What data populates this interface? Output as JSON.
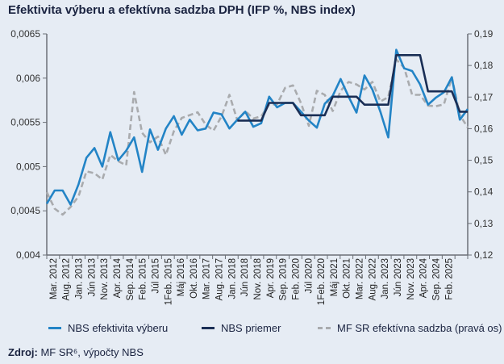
{
  "chart_data": {
    "type": "line",
    "title": "Efektivita výberu a efektívna sadzba DPH (IFP %, NBS index)",
    "x_tick_labels": [
      "Mar. 2012",
      "Aug. 2012",
      "Jan. 2013",
      "Jún 2013",
      "Nov. 2013",
      "Apr. 2014",
      "Sep. 2014",
      "Feb. 2015",
      "Júl 2015",
      "1Feb. 2015",
      "Máj 2016",
      "Okt. 2016",
      "Mar. 2017",
      "Aug. 2017",
      "Jan. 2018",
      "Jún 2018",
      "Nov. 2018",
      "Apr. 2019",
      "Sep. 2019",
      "Feb. 2020",
      "Júl 2020",
      "1Feb. 2020",
      "Máj 2021",
      "Okt. 2021",
      "Mar. 2022",
      "Aug. 2022",
      "Jan. 2023",
      "Jún 2023",
      "Nov. 2023",
      "Apr. 2024",
      "Sep. 2024",
      "Feb. 2025"
    ],
    "y_left": {
      "range": [
        0.004,
        0.0065
      ],
      "tick_labels": [
        "0,004",
        "0,0045",
        "0,005",
        "0,0055",
        "0,006",
        "0,0065"
      ],
      "ticks": [
        0.004,
        0.0045,
        0.005,
        0.0055,
        0.006,
        0.0065
      ]
    },
    "y_right": {
      "range": [
        0.12,
        0.19
      ],
      "tick_labels": [
        "0,12",
        "0,13",
        "0,14",
        "0,15",
        "0,16",
        "0,17",
        "0,18",
        "0,19"
      ],
      "ticks": [
        0.12,
        0.13,
        0.14,
        0.15,
        0.16,
        0.17,
        0.18,
        0.19
      ]
    },
    "grid": false,
    "legend_placement": "bottom",
    "series": [
      {
        "name": "NBS efektivita výberu",
        "axis": "left",
        "color": "#2384c6",
        "style": "solid",
        "values": [
          0.00458,
          0.00473,
          0.00473,
          0.00457,
          0.0048,
          0.0051,
          0.00521,
          0.005,
          0.00539,
          0.00507,
          0.00518,
          0.00533,
          0.00494,
          0.00542,
          0.00519,
          0.00543,
          0.00557,
          0.00536,
          0.00553,
          0.00541,
          0.00543,
          0.00561,
          0.00559,
          0.00543,
          0.00553,
          0.00562,
          0.00545,
          0.00549,
          0.00579,
          0.00567,
          0.00572,
          0.00572,
          0.00562,
          0.00552,
          0.00544,
          0.00571,
          0.0058,
          0.00599,
          0.00579,
          0.00561,
          0.00603,
          0.00587,
          0.00562,
          0.00533,
          0.00632,
          0.00611,
          0.00608,
          0.00593,
          0.0057,
          0.00578,
          0.00584,
          0.00601,
          0.00553,
          0.00565
        ]
      },
      {
        "name": "NBS priemer",
        "axis": "left",
        "color": "#1a2e55",
        "style": "solid",
        "values": [
          null,
          null,
          null,
          null,
          null,
          null,
          null,
          null,
          null,
          null,
          null,
          null,
          null,
          null,
          null,
          null,
          null,
          null,
          null,
          null,
          null,
          null,
          null,
          null,
          0.00552,
          0.00552,
          0.00552,
          0.00552,
          0.00572,
          0.00572,
          0.00572,
          0.00572,
          0.00558,
          0.00558,
          0.00558,
          0.00558,
          0.00579,
          0.00579,
          0.00579,
          0.00579,
          0.0057,
          0.0057,
          0.0057,
          0.0057,
          0.00626,
          0.00626,
          0.00626,
          0.00626,
          0.00585,
          0.00585,
          0.00585,
          0.00585,
          0.00562,
          0.00562
        ]
      },
      {
        "name": "MF SR efektívna sadzba (pravá os)",
        "axis": "right",
        "color": "#a9abae",
        "style": "dashed",
        "values": [
          0.1399,
          0.1347,
          0.1328,
          0.1352,
          0.1386,
          0.1465,
          0.1459,
          0.1439,
          0.1517,
          0.1497,
          0.1484,
          0.1716,
          0.1587,
          0.1557,
          0.1575,
          0.1517,
          0.1592,
          0.1634,
          0.1643,
          0.1652,
          0.1613,
          0.1594,
          0.1639,
          0.1707,
          0.1626,
          0.1656,
          0.1632,
          0.1639,
          0.1677,
          0.1677,
          0.1729,
          0.1737,
          0.1681,
          0.1609,
          0.172,
          0.1707,
          0.1656,
          0.172,
          0.1748,
          0.174,
          0.1724,
          0.1748,
          0.1686,
          0.17,
          0.1819,
          0.1793,
          0.1707,
          0.1707,
          0.1673,
          0.1671,
          0.1677,
          0.1763,
          0.1643,
          0.1604
        ]
      }
    ]
  },
  "source": {
    "label": "Zdroj:",
    "text": " MF SR⁶, výpočty NBS"
  }
}
